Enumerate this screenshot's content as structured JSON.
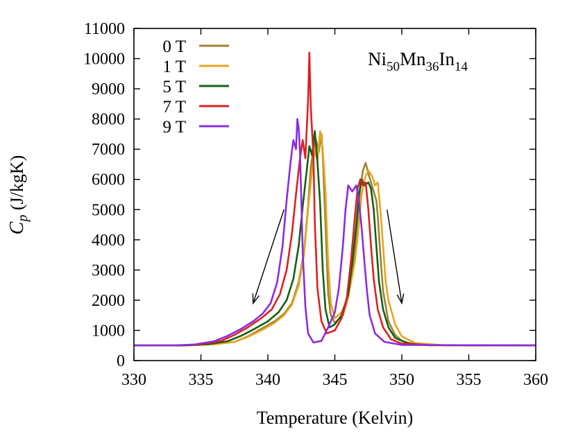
{
  "chart_data": {
    "type": "line",
    "xlabel": "Temperature (Kelvin)",
    "ylabel_main": "C",
    "ylabel_sub": "p",
    "ylabel_units": " (J/kgK)",
    "xlim": [
      330,
      360
    ],
    "ylim": [
      0,
      11000
    ],
    "xticks": [
      330,
      335,
      340,
      345,
      350,
      355,
      360
    ],
    "yticks": [
      0,
      1000,
      2000,
      3000,
      4000,
      5000,
      6000,
      7000,
      8000,
      9000,
      10000,
      11000
    ],
    "grid": false,
    "legend_position": "top-left",
    "annotation": {
      "parts": [
        {
          "text": "Ni",
          "sub": false
        },
        {
          "text": "50",
          "sub": true
        },
        {
          "text": "Mn",
          "sub": false
        },
        {
          "text": "36",
          "sub": true
        },
        {
          "text": "In",
          "sub": false
        },
        {
          "text": "14",
          "sub": true
        }
      ]
    },
    "arrows": [
      {
        "from": [
          341.2,
          5000
        ],
        "to": [
          338.9,
          1900
        ]
      },
      {
        "from": [
          348.9,
          5000
        ],
        "to": [
          350.0,
          1900
        ]
      }
    ],
    "series": [
      {
        "name": "0 T",
        "color": "#a08030",
        "points": [
          [
            330,
            500
          ],
          [
            334,
            500
          ],
          [
            336,
            540
          ],
          [
            337.5,
            620
          ],
          [
            338.5,
            800
          ],
          [
            339.5,
            1050
          ],
          [
            340.5,
            1300
          ],
          [
            341.2,
            1550
          ],
          [
            341.8,
            1900
          ],
          [
            342.3,
            2600
          ],
          [
            342.7,
            3600
          ],
          [
            343.0,
            5100
          ],
          [
            343.2,
            6400
          ],
          [
            343.4,
            7000
          ],
          [
            343.6,
            7300
          ],
          [
            343.8,
            6900
          ],
          [
            344.0,
            7500
          ],
          [
            344.1,
            6800
          ],
          [
            344.3,
            4500
          ],
          [
            344.5,
            2200
          ],
          [
            344.7,
            1500
          ],
          [
            345.0,
            1250
          ],
          [
            345.6,
            1500
          ],
          [
            346.0,
            2100
          ],
          [
            346.4,
            3200
          ],
          [
            346.7,
            4700
          ],
          [
            346.9,
            5700
          ],
          [
            347.1,
            6300
          ],
          [
            347.3,
            6550
          ],
          [
            347.5,
            6200
          ],
          [
            347.7,
            5900
          ],
          [
            347.9,
            5600
          ],
          [
            348.1,
            5300
          ],
          [
            348.2,
            4800
          ],
          [
            348.4,
            3500
          ],
          [
            348.6,
            2300
          ],
          [
            349.0,
            1300
          ],
          [
            349.5,
            850
          ],
          [
            350,
            650
          ],
          [
            351,
            540
          ],
          [
            353,
            510
          ],
          [
            360,
            500
          ]
        ]
      },
      {
        "name": "1 T",
        "color": "#e6a520",
        "points": [
          [
            330,
            500
          ],
          [
            334,
            500
          ],
          [
            336,
            540
          ],
          [
            337.5,
            620
          ],
          [
            338.5,
            780
          ],
          [
            339.5,
            1000
          ],
          [
            340.5,
            1250
          ],
          [
            341.2,
            1500
          ],
          [
            341.8,
            1850
          ],
          [
            342.3,
            2500
          ],
          [
            342.7,
            3500
          ],
          [
            343.0,
            5000
          ],
          [
            343.3,
            6300
          ],
          [
            343.5,
            7000
          ],
          [
            343.7,
            6600
          ],
          [
            343.9,
            7600
          ],
          [
            344.1,
            7000
          ],
          [
            344.3,
            5600
          ],
          [
            344.5,
            3200
          ],
          [
            344.7,
            1900
          ],
          [
            345.0,
            1400
          ],
          [
            345.5,
            1600
          ],
          [
            346.0,
            2100
          ],
          [
            346.5,
            3300
          ],
          [
            346.8,
            4500
          ],
          [
            347.0,
            5500
          ],
          [
            347.2,
            6000
          ],
          [
            347.5,
            6300
          ],
          [
            347.8,
            6100
          ],
          [
            348.0,
            5800
          ],
          [
            348.2,
            5900
          ],
          [
            348.4,
            5000
          ],
          [
            348.6,
            3800
          ],
          [
            348.8,
            2600
          ],
          [
            349.0,
            2000
          ],
          [
            349.5,
            1200
          ],
          [
            350,
            800
          ],
          [
            351,
            580
          ],
          [
            353,
            510
          ],
          [
            360,
            500
          ]
        ]
      },
      {
        "name": "5 T",
        "color": "#126012",
        "points": [
          [
            330,
            500
          ],
          [
            333.5,
            500
          ],
          [
            335.5,
            540
          ],
          [
            337,
            640
          ],
          [
            338,
            820
          ],
          [
            339,
            1050
          ],
          [
            340,
            1300
          ],
          [
            340.8,
            1600
          ],
          [
            341.4,
            2000
          ],
          [
            341.9,
            2700
          ],
          [
            342.3,
            3800
          ],
          [
            342.6,
            5100
          ],
          [
            342.9,
            6300
          ],
          [
            343.1,
            7100
          ],
          [
            343.3,
            6800
          ],
          [
            343.5,
            7600
          ],
          [
            343.7,
            6600
          ],
          [
            343.9,
            5200
          ],
          [
            344.1,
            3000
          ],
          [
            344.3,
            1700
          ],
          [
            344.6,
            1100
          ],
          [
            345,
            1200
          ],
          [
            345.5,
            1500
          ],
          [
            346.0,
            2200
          ],
          [
            346.3,
            3200
          ],
          [
            346.6,
            4500
          ],
          [
            346.8,
            5500
          ],
          [
            347.0,
            6000
          ],
          [
            347.2,
            5800
          ],
          [
            347.5,
            5900
          ],
          [
            347.7,
            5700
          ],
          [
            347.9,
            5000
          ],
          [
            348.1,
            3800
          ],
          [
            348.3,
            2600
          ],
          [
            348.6,
            1700
          ],
          [
            349.0,
            1100
          ],
          [
            349.5,
            750
          ],
          [
            350.5,
            560
          ],
          [
            352,
            510
          ],
          [
            360,
            500
          ]
        ]
      },
      {
        "name": "7 T",
        "color": "#dd2020",
        "points": [
          [
            330,
            500
          ],
          [
            333,
            500
          ],
          [
            335,
            540
          ],
          [
            336.5,
            650
          ],
          [
            337.5,
            850
          ],
          [
            338.5,
            1100
          ],
          [
            339.5,
            1400
          ],
          [
            340.3,
            1700
          ],
          [
            340.9,
            2200
          ],
          [
            341.4,
            3000
          ],
          [
            341.8,
            4200
          ],
          [
            342.1,
            5500
          ],
          [
            342.4,
            6700
          ],
          [
            342.6,
            7300
          ],
          [
            342.8,
            6700
          ],
          [
            343.0,
            8600
          ],
          [
            343.1,
            10200
          ],
          [
            343.2,
            8400
          ],
          [
            343.4,
            6800
          ],
          [
            343.5,
            4600
          ],
          [
            343.7,
            2400
          ],
          [
            344.0,
            1300
          ],
          [
            344.4,
            900
          ],
          [
            345,
            1000
          ],
          [
            345.5,
            1400
          ],
          [
            345.9,
            2100
          ],
          [
            346.2,
            3300
          ],
          [
            346.5,
            4800
          ],
          [
            346.7,
            5700
          ],
          [
            346.9,
            6000
          ],
          [
            347.1,
            5800
          ],
          [
            347.3,
            5900
          ],
          [
            347.5,
            5000
          ],
          [
            347.7,
            3800
          ],
          [
            347.9,
            2700
          ],
          [
            348.2,
            1700
          ],
          [
            348.6,
            1100
          ],
          [
            349.2,
            700
          ],
          [
            350,
            560
          ],
          [
            352,
            510
          ],
          [
            360,
            500
          ]
        ]
      },
      {
        "name": "9 T",
        "color": "#8a2be2",
        "points": [
          [
            330,
            500
          ],
          [
            333,
            500
          ],
          [
            334.5,
            530
          ],
          [
            336,
            640
          ],
          [
            337,
            820
          ],
          [
            338,
            1050
          ],
          [
            338.9,
            1300
          ],
          [
            339.6,
            1550
          ],
          [
            340.2,
            1900
          ],
          [
            340.7,
            2600
          ],
          [
            341.1,
            3800
          ],
          [
            341.4,
            5300
          ],
          [
            341.7,
            6600
          ],
          [
            341.9,
            7300
          ],
          [
            342.1,
            7000
          ],
          [
            342.2,
            8000
          ],
          [
            342.3,
            7700
          ],
          [
            342.4,
            6900
          ],
          [
            342.5,
            5200
          ],
          [
            342.6,
            3600
          ],
          [
            342.8,
            1800
          ],
          [
            343.0,
            900
          ],
          [
            343.4,
            600
          ],
          [
            344,
            650
          ],
          [
            344.5,
            1100
          ],
          [
            345,
            1600
          ],
          [
            345.3,
            2400
          ],
          [
            345.6,
            3800
          ],
          [
            345.8,
            5000
          ],
          [
            346.0,
            5800
          ],
          [
            346.3,
            5600
          ],
          [
            346.6,
            5800
          ],
          [
            346.8,
            5300
          ],
          [
            347.0,
            4400
          ],
          [
            347.2,
            3300
          ],
          [
            347.4,
            2300
          ],
          [
            347.6,
            1500
          ],
          [
            348.0,
            900
          ],
          [
            348.7,
            620
          ],
          [
            350,
            520
          ],
          [
            360,
            500
          ]
        ]
      }
    ]
  }
}
